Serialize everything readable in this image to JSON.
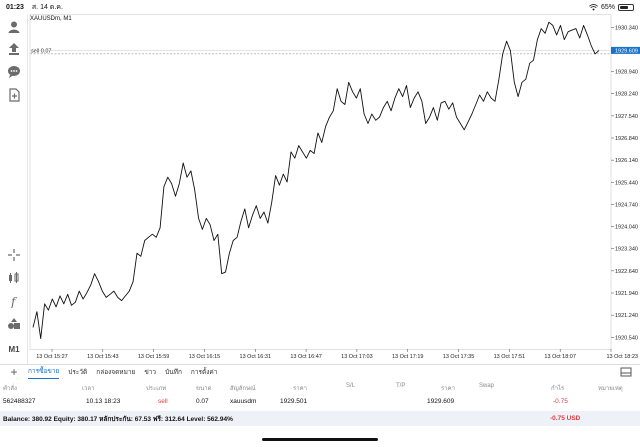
{
  "statusbar": {
    "time": "01:23",
    "date": "ส. 14 ต.ค.",
    "battery": "65%",
    "battery_level": 0.65
  },
  "toolbar": {
    "icons": [
      "user-icon",
      "upload-icon",
      "chat-icon",
      "add-document-icon",
      "crosshair-icon",
      "indicator-icon",
      "function-icon",
      "objects-icon"
    ],
    "timeframe": "M1"
  },
  "chart": {
    "symbol_title": "XAUUSDm, M1",
    "sell_label": "sell 0.07",
    "current_price": "1929.609",
    "line_color": "#111111",
    "price_tag_color": "#1a73c9"
  },
  "chart_data": {
    "type": "line",
    "title": "XAUUSDm, M1",
    "xlabel": "",
    "ylabel": "",
    "ylim": [
      1920.17,
      1930.76
    ],
    "y_ticks": [
      "1930.340",
      "1929.640",
      "1928.940",
      "1928.240",
      "1927.540",
      "1926.840",
      "1926.140",
      "1925.440",
      "1924.740",
      "1924.040",
      "1923.340",
      "1922.640",
      "1921.940",
      "1921.240",
      "1920.540"
    ],
    "x_ticks": [
      "13 Oct 15:27",
      "13 Oct 15:43",
      "13 Oct 15:59",
      "13 Oct 16:15",
      "13 Oct 16:31",
      "13 Oct 16:47",
      "13 Oct 17:03",
      "13 Oct 17:19",
      "13 Oct 17:35",
      "13 Oct 17:51",
      "13 Oct 18:07",
      "13 Oct 18:23"
    ],
    "series": [
      {
        "values": [
          1920.85,
          1921.35,
          1920.5,
          1921.6,
          1921.4,
          1921.75,
          1921.5,
          1921.85,
          1921.6,
          1921.9,
          1921.55,
          1921.65,
          1922.0,
          1921.75,
          1921.95,
          1922.2,
          1922.55,
          1922.3,
          1922.0,
          1921.8,
          1921.9,
          1922.0,
          1921.8,
          1921.7,
          1921.85,
          1922.0,
          1922.3,
          1923.2,
          1923.1,
          1923.6,
          1923.7,
          1923.8,
          1923.7,
          1924.0,
          1925.3,
          1925.6,
          1925.4,
          1925.0,
          1925.4,
          1926.05,
          1925.6,
          1925.8,
          1925.2,
          1924.3,
          1923.95,
          1924.3,
          1924.1,
          1923.6,
          1923.8,
          1922.55,
          1922.6,
          1923.2,
          1923.6,
          1923.7,
          1924.2,
          1924.6,
          1924.0,
          1924.4,
          1924.7,
          1924.3,
          1924.5,
          1924.15,
          1924.8,
          1925.65,
          1925.35,
          1925.7,
          1925.45,
          1926.4,
          1926.2,
          1926.6,
          1926.4,
          1926.2,
          1926.45,
          1926.35,
          1927.0,
          1926.7,
          1927.2,
          1927.5,
          1927.7,
          1928.4,
          1928.0,
          1927.9,
          1928.6,
          1928.3,
          1928.1,
          1928.4,
          1927.6,
          1927.3,
          1927.6,
          1927.4,
          1927.5,
          1927.8,
          1928.0,
          1927.7,
          1928.1,
          1928.4,
          1928.15,
          1928.5,
          1927.8,
          1928.1,
          1928.3,
          1928.0,
          1927.3,
          1927.5,
          1927.8,
          1927.4,
          1927.95,
          1928.0,
          1927.75,
          1927.95,
          1927.5,
          1927.3,
          1927.1,
          1927.35,
          1927.6,
          1927.9,
          1928.2,
          1928.0,
          1928.3,
          1928.1,
          1928.0,
          1928.7,
          1929.5,
          1929.9,
          1929.6,
          1928.6,
          1928.15,
          1928.6,
          1928.7,
          1929.2,
          1929.3,
          1929.95,
          1930.3,
          1930.15,
          1930.5,
          1930.4,
          1930.1,
          1930.4,
          1929.95,
          1930.2,
          1930.25,
          1930.3,
          1930.0,
          1930.4,
          1930.1,
          1929.75,
          1929.5,
          1929.609
        ]
      }
    ],
    "sell_level": 1929.501,
    "grid": false,
    "legend": "none"
  },
  "tabs": {
    "items": [
      "การซื้อขาย",
      "ประวัติ",
      "กล่องจดหมาย",
      "ข่าว",
      "บันทึก",
      "การตั้งค่า"
    ],
    "active_index": 0
  },
  "table": {
    "headers": [
      "คำสั่ง",
      "เวลา",
      "ประเภท",
      "ขนาด",
      "สัญลักษณ์",
      "ราคา",
      "S/L",
      "T/P",
      "ราคา",
      "Swap",
      "กำไร",
      "หมายเหตุ"
    ],
    "row": {
      "order": "562488327",
      "time": "10.13 18:23",
      "type": "sell",
      "size": "0.07",
      "symbol": "xauusdm",
      "price": "1929.501",
      "sl": "",
      "tp": "",
      "current_price": "1929.609",
      "swap": "",
      "profit": "-0.75",
      "comment": ""
    }
  },
  "balance": {
    "summary": "Balance: 380.92 Equity: 380.17 หลักประกัน: 67.53 ฟรี: 312.64 Level: 562.94%",
    "profit": "-0.75",
    "currency": "USD"
  }
}
